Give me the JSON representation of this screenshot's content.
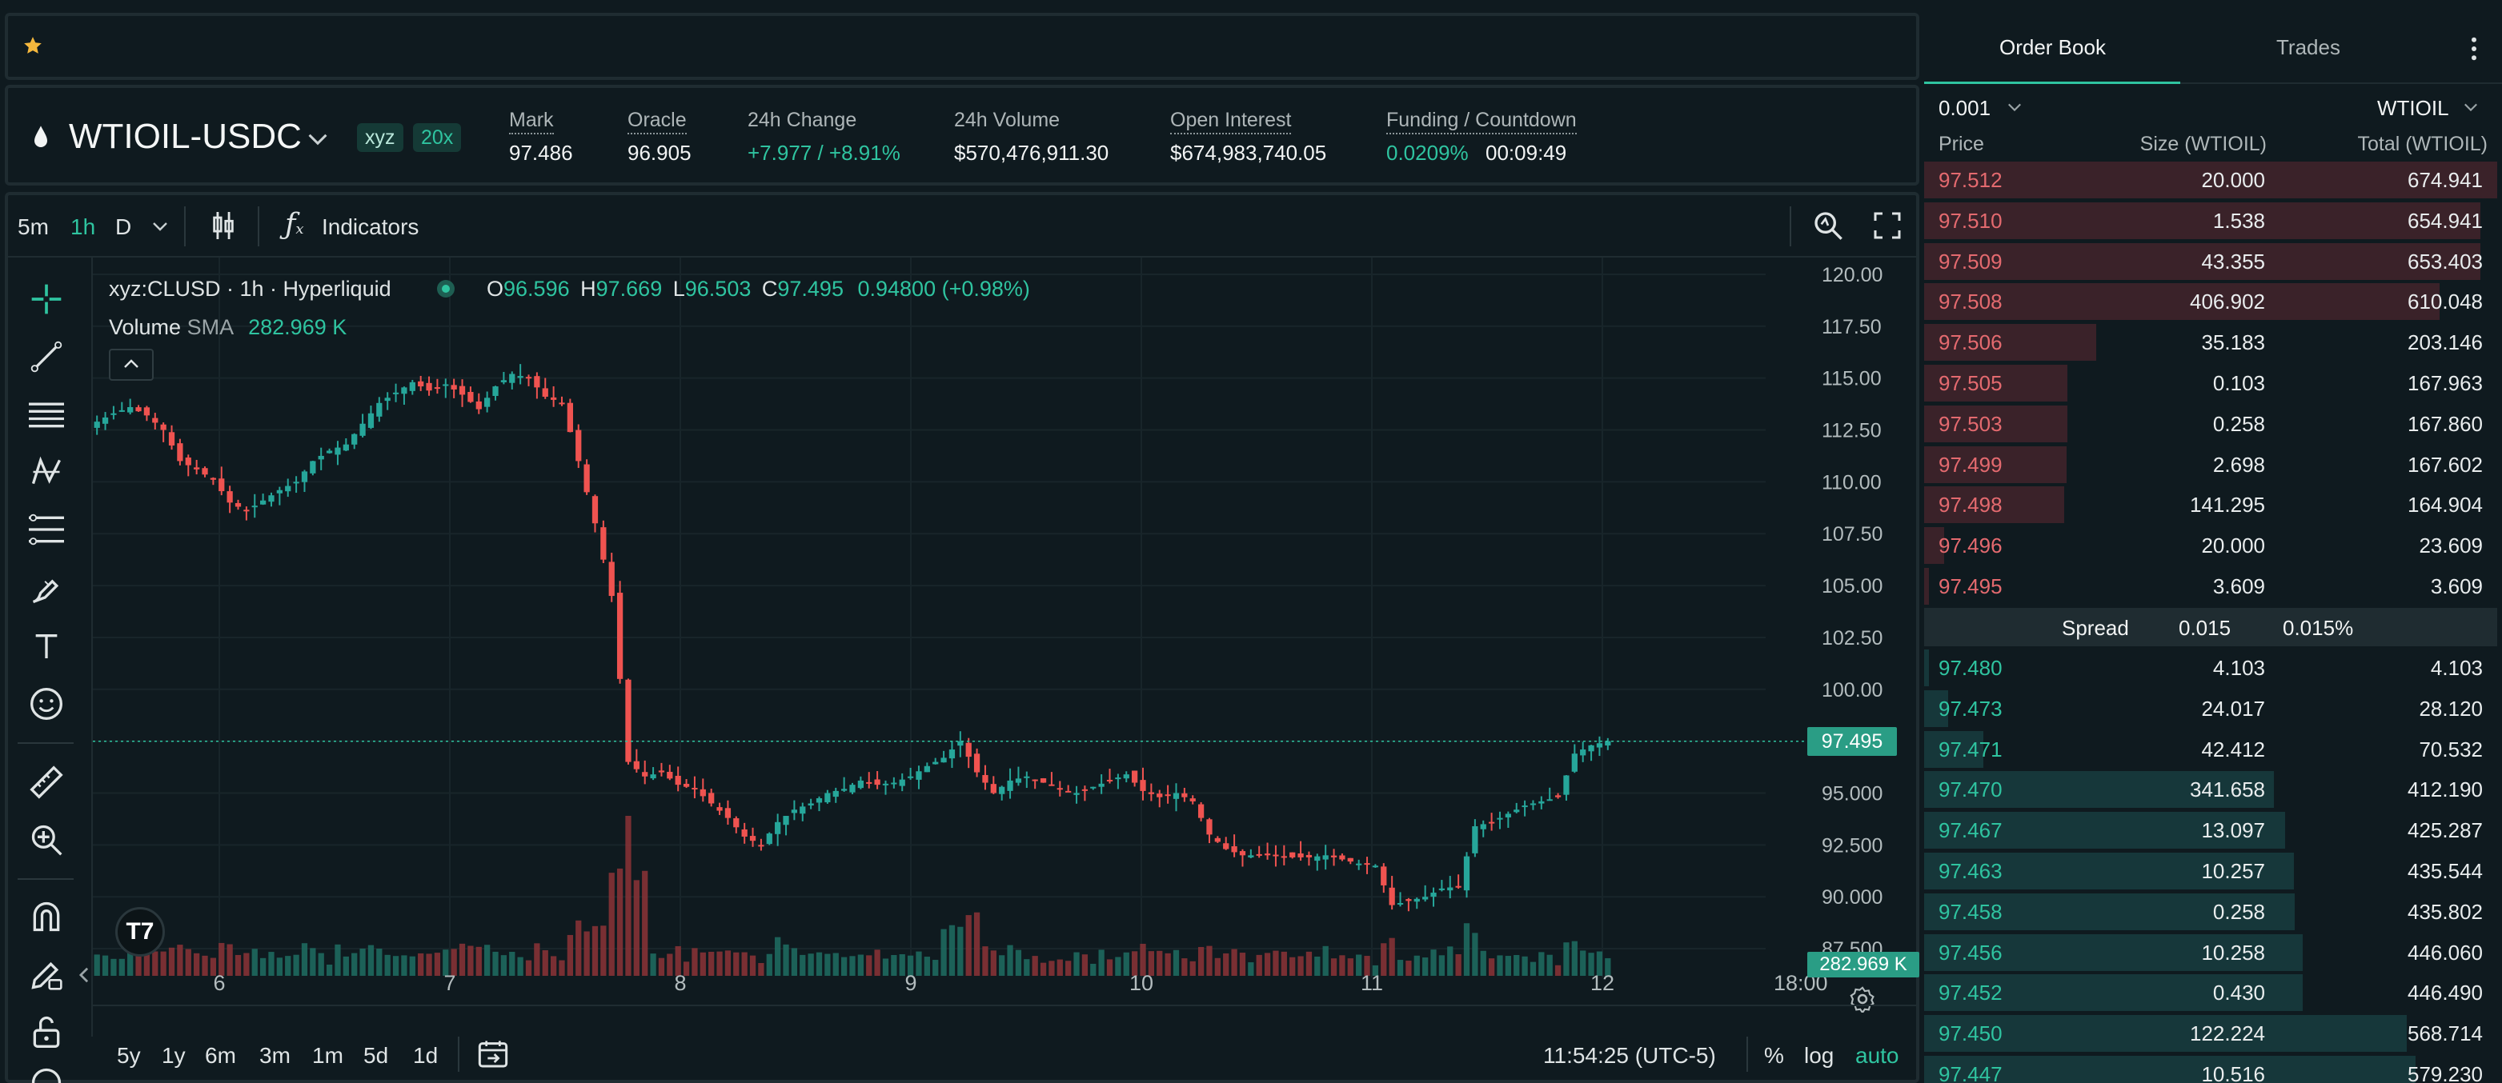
{
  "market": {
    "symbol": "WTIOIL-USDC",
    "badge_dex": "xyz",
    "badge_leverage": "20x",
    "mark_label": "Mark",
    "mark_value": "97.486",
    "oracle_label": "Oracle",
    "oracle_value": "96.905",
    "change_label": "24h Change",
    "change_value": "+7.977 / +8.91%",
    "volume_label": "24h Volume",
    "volume_value": "$570,476,911.30",
    "oi_label": "Open Interest",
    "oi_value": "$674,983,740.05",
    "funding_label": "Funding / Countdown",
    "funding_rate": "0.0209%",
    "funding_countdown": "00:09:49"
  },
  "toolbar": {
    "interval_5m": "5m",
    "interval_1h": "1h",
    "interval_d": "D",
    "indicators_label": "Indicators"
  },
  "legend": {
    "symbol_line": "xyz:CLUSD · 1h · Hyperliquid",
    "o_label": "O",
    "o_value": "96.596",
    "h_label": "H",
    "h_value": "97.669",
    "l_label": "L",
    "l_value": "96.503",
    "c_label": "C",
    "c_value": "97.495",
    "change": "0.94800 (+0.98%)",
    "volume_label": "Volume",
    "volume_sma": "SMA",
    "volume_value": "282.969 K"
  },
  "chart_data": {
    "type": "candlestick",
    "y_ticks": [
      "120.00",
      "117.50",
      "115.00",
      "112.50",
      "110.00",
      "107.50",
      "105.00",
      "102.50",
      "100.00",
      "97.50",
      "95.000",
      "92.500",
      "90.000",
      "87.500"
    ],
    "x_ticks": [
      "6",
      "7",
      "8",
      "9",
      "10",
      "11",
      "12",
      "18:00"
    ],
    "ylim": [
      86.5,
      120.5
    ],
    "last_price_label": "97.495",
    "last_price": 97.495,
    "volume_label": "282.969 K",
    "close_path": [
      [
        0,
        112.9
      ],
      [
        2,
        113.3
      ],
      [
        4,
        113.6
      ],
      [
        6,
        113.2
      ],
      [
        8,
        112.5
      ],
      [
        10,
        111.0
      ],
      [
        12,
        110.6
      ],
      [
        14,
        110.1
      ],
      [
        16,
        109.0
      ],
      [
        18,
        108.6
      ],
      [
        20,
        109.1
      ],
      [
        22,
        109.6
      ],
      [
        24,
        110.0
      ],
      [
        26,
        111.0
      ],
      [
        28,
        111.5
      ],
      [
        30,
        111.8
      ],
      [
        32,
        112.8
      ],
      [
        34,
        113.8
      ],
      [
        36,
        114.3
      ],
      [
        38,
        114.8
      ],
      [
        40,
        114.4
      ],
      [
        42,
        114.7
      ],
      [
        44,
        114.2
      ],
      [
        46,
        113.5
      ],
      [
        48,
        114.6
      ],
      [
        50,
        115.2
      ],
      [
        52,
        115.0
      ],
      [
        54,
        114.1
      ],
      [
        56,
        113.8
      ],
      [
        58,
        111.0
      ],
      [
        60,
        108.0
      ],
      [
        62,
        104.5
      ],
      [
        64,
        96.5
      ],
      [
        66,
        95.8
      ],
      [
        68,
        96.0
      ],
      [
        70,
        95.4
      ],
      [
        72,
        95.2
      ],
      [
        74,
        94.5
      ],
      [
        76,
        93.8
      ],
      [
        78,
        92.9
      ],
      [
        80,
        92.5
      ],
      [
        82,
        93.6
      ],
      [
        84,
        94.2
      ],
      [
        86,
        94.5
      ],
      [
        88,
        95.0
      ],
      [
        90,
        95.2
      ],
      [
        92,
        95.6
      ],
      [
        94,
        95.4
      ],
      [
        96,
        95.5
      ],
      [
        98,
        95.8
      ],
      [
        100,
        96.3
      ],
      [
        102,
        96.7
      ],
      [
        104,
        97.5
      ],
      [
        106,
        96.0
      ],
      [
        108,
        95.0
      ],
      [
        110,
        95.6
      ],
      [
        112,
        95.8
      ],
      [
        114,
        95.5
      ],
      [
        116,
        95.2
      ],
      [
        118,
        95.0
      ],
      [
        120,
        95.3
      ],
      [
        122,
        95.6
      ],
      [
        124,
        95.9
      ],
      [
        126,
        95.1
      ],
      [
        128,
        94.8
      ],
      [
        130,
        95.0
      ],
      [
        132,
        94.6
      ],
      [
        134,
        93.0
      ],
      [
        136,
        92.3
      ],
      [
        138,
        92.0
      ],
      [
        140,
        92.0
      ],
      [
        142,
        92.0
      ],
      [
        144,
        91.9
      ],
      [
        146,
        91.9
      ],
      [
        148,
        92.0
      ],
      [
        150,
        91.8
      ],
      [
        152,
        91.6
      ],
      [
        154,
        91.5
      ],
      [
        156,
        89.6
      ],
      [
        158,
        89.8
      ],
      [
        160,
        90.0
      ],
      [
        162,
        90.4
      ],
      [
        164,
        90.5
      ],
      [
        166,
        93.4
      ],
      [
        168,
        93.6
      ],
      [
        170,
        94.0
      ],
      [
        172,
        94.4
      ],
      [
        174,
        94.6
      ],
      [
        176,
        94.8
      ],
      [
        178,
        96.9
      ],
      [
        180,
        97.3
      ],
      [
        182,
        97.5
      ]
    ]
  },
  "bottom_bar": {
    "range_5y": "5y",
    "range_1y": "1y",
    "range_6m": "6m",
    "range_3m": "3m",
    "range_1m": "1m",
    "range_5d": "5d",
    "range_1d": "1d",
    "clock": "11:54:25 (UTC-5)",
    "pct_label": "%",
    "log_label": "log",
    "auto_label": "auto"
  },
  "orderbook": {
    "tab_book": "Order Book",
    "tab_trades": "Trades",
    "tick_size": "0.001",
    "unit_select": "WTIOIL",
    "col_price": "Price",
    "col_size": "Size (WTIOIL)",
    "col_total": "Total (WTIOIL)",
    "spread_label": "Spread",
    "spread_value": "0.015",
    "spread_pct": "0.015%",
    "asks": [
      {
        "price": "97.512",
        "size": "20.000",
        "total": "674.941",
        "depth": 1.0
      },
      {
        "price": "97.510",
        "size": "1.538",
        "total": "654.941",
        "depth": 0.97
      },
      {
        "price": "97.509",
        "size": "43.355",
        "total": "653.403",
        "depth": 0.97
      },
      {
        "price": "97.508",
        "size": "406.902",
        "total": "610.048",
        "depth": 0.9
      },
      {
        "price": "97.506",
        "size": "35.183",
        "total": "203.146",
        "depth": 0.3
      },
      {
        "price": "97.505",
        "size": "0.103",
        "total": "167.963",
        "depth": 0.25
      },
      {
        "price": "97.503",
        "size": "0.258",
        "total": "167.860",
        "depth": 0.25
      },
      {
        "price": "97.499",
        "size": "2.698",
        "total": "167.602",
        "depth": 0.248
      },
      {
        "price": "97.498",
        "size": "141.295",
        "total": "164.904",
        "depth": 0.244
      },
      {
        "price": "97.496",
        "size": "20.000",
        "total": "23.609",
        "depth": 0.035
      },
      {
        "price": "97.495",
        "size": "3.609",
        "total": "3.609",
        "depth": 0.006
      }
    ],
    "bids": [
      {
        "price": "97.480",
        "size": "4.103",
        "total": "4.103",
        "depth": 0.007
      },
      {
        "price": "97.473",
        "size": "24.017",
        "total": "28.120",
        "depth": 0.042
      },
      {
        "price": "97.471",
        "size": "42.412",
        "total": "70.532",
        "depth": 0.104
      },
      {
        "price": "97.470",
        "size": "341.658",
        "total": "412.190",
        "depth": 0.61
      },
      {
        "price": "97.467",
        "size": "13.097",
        "total": "425.287",
        "depth": 0.63
      },
      {
        "price": "97.463",
        "size": "10.257",
        "total": "435.544",
        "depth": 0.645
      },
      {
        "price": "97.458",
        "size": "0.258",
        "total": "435.802",
        "depth": 0.646
      },
      {
        "price": "97.456",
        "size": "10.258",
        "total": "446.060",
        "depth": 0.66
      },
      {
        "price": "97.452",
        "size": "0.430",
        "total": "446.490",
        "depth": 0.661
      },
      {
        "price": "97.450",
        "size": "122.224",
        "total": "568.714",
        "depth": 0.842
      },
      {
        "price": "97.447",
        "size": "10.516",
        "total": "579.230",
        "depth": 0.858
      }
    ]
  }
}
